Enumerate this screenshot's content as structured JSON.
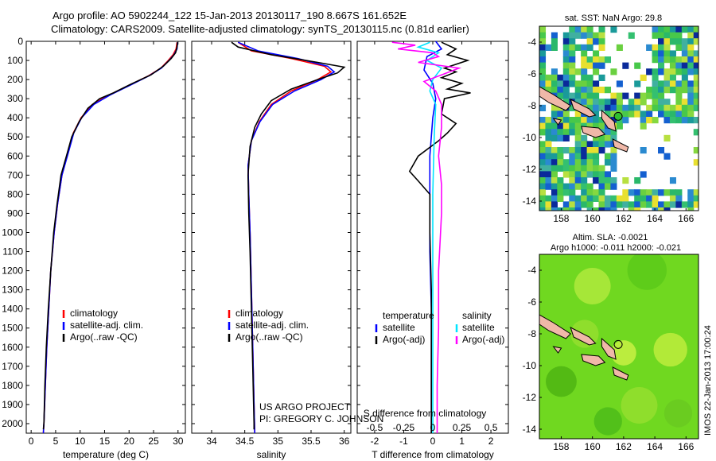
{
  "header": {
    "line1": "Argo profile: AO 5902244_122 15-Jan-2013 20130117_190 8.667S 161.652E",
    "line2": "Climatology: CARS2009. Satellite-adjusted climatology: synTS_20130115.nc (0.81d earlier)"
  },
  "colors": {
    "climatology": "#ff0000",
    "satellite": "#0000ff",
    "argo": "#000000",
    "cyan": "#00e5ff",
    "magenta": "#ff00ff"
  },
  "chart_data": [
    {
      "type": "line",
      "name": "temperature",
      "xlabel": "temperature (deg C)",
      "xlim": [
        -1,
        31.5
      ],
      "ylim": [
        2050,
        0
      ],
      "xticks": [
        0,
        5,
        10,
        15,
        20,
        25,
        30
      ],
      "yticks": [
        0,
        100,
        200,
        300,
        400,
        500,
        600,
        700,
        800,
        900,
        1000,
        1100,
        1200,
        1300,
        1400,
        1500,
        1600,
        1700,
        1800,
        1900,
        2000
      ],
      "legend": [
        "climatology",
        "satellite-adj. clim.",
        "Argo(..raw -QC)"
      ],
      "series": [
        {
          "name": "climatology",
          "color": "#ff0000",
          "points": [
            [
              29.8,
              5
            ],
            [
              29.6,
              40
            ],
            [
              29,
              70
            ],
            [
              28,
              100
            ],
            [
              26.5,
              140
            ],
            [
              24,
              180
            ],
            [
              20,
              230
            ],
            [
              16,
              280
            ],
            [
              12.5,
              330
            ],
            [
              10.2,
              400
            ],
            [
              8.6,
              480
            ],
            [
              7.3,
              600
            ],
            [
              6.3,
              700
            ],
            [
              5.4,
              850
            ],
            [
              4.7,
              1000
            ],
            [
              4,
              1200
            ],
            [
              3.6,
              1400
            ],
            [
              3.2,
              1600
            ],
            [
              2.9,
              1800
            ],
            [
              2.6,
              2000
            ],
            [
              2.5,
              2050
            ]
          ]
        },
        {
          "name": "satellite-adj. clim.",
          "color": "#0000ff",
          "points": [
            [
              29.9,
              5
            ],
            [
              29.8,
              40
            ],
            [
              29.2,
              70
            ],
            [
              28.2,
              100
            ],
            [
              26.6,
              140
            ],
            [
              24.1,
              180
            ],
            [
              20.2,
              230
            ],
            [
              16.2,
              280
            ],
            [
              12.8,
              330
            ],
            [
              10.3,
              400
            ],
            [
              8.7,
              480
            ],
            [
              7.4,
              600
            ],
            [
              6.3,
              700
            ],
            [
              5.4,
              850
            ],
            [
              4.7,
              1000
            ],
            [
              4,
              1200
            ],
            [
              3.6,
              1400
            ],
            [
              3.2,
              1600
            ],
            [
              2.9,
              1800
            ],
            [
              2.6,
              2000
            ],
            [
              2.5,
              2050
            ]
          ]
        },
        {
          "name": "Argo(..raw -QC)",
          "color": "#000000",
          "points": [
            [
              29.9,
              5
            ],
            [
              29.8,
              30
            ],
            [
              29.5,
              60
            ],
            [
              28.6,
              90
            ],
            [
              27,
              130
            ],
            [
              24.5,
              175
            ],
            [
              20.3,
              225
            ],
            [
              16.8,
              270
            ],
            [
              14,
              300
            ],
            [
              11.6,
              350
            ],
            [
              9.8,
              420
            ],
            [
              8.3,
              500
            ],
            [
              7.2,
              600
            ],
            [
              6.1,
              700
            ],
            [
              5.3,
              850
            ],
            [
              4.6,
              1000
            ],
            [
              4,
              1200
            ],
            [
              3.5,
              1400
            ],
            [
              3.1,
              1600
            ],
            [
              2.8,
              1800
            ],
            [
              2.6,
              2000
            ],
            [
              2.5,
              2030
            ]
          ]
        }
      ]
    },
    {
      "type": "line",
      "name": "salinity",
      "xlabel": "salinity",
      "xlim": [
        33.7,
        36.1
      ],
      "ylim": [
        2050,
        0
      ],
      "xticks": [
        34,
        34.5,
        35,
        35.5,
        36
      ],
      "legend": [
        "climatology",
        "satellite-adj. clim.",
        "Argo(..raw -QC)"
      ],
      "series": [
        {
          "name": "climatology",
          "color": "#ff0000",
          "points": [
            [
              34.4,
              5
            ],
            [
              34.6,
              50
            ],
            [
              35.2,
              90
            ],
            [
              35.7,
              130
            ],
            [
              35.8,
              160
            ],
            [
              35.6,
              200
            ],
            [
              35.2,
              260
            ],
            [
              34.9,
              330
            ],
            [
              34.72,
              420
            ],
            [
              34.6,
              520
            ],
            [
              34.55,
              650
            ],
            [
              34.56,
              800
            ],
            [
              34.58,
              1000
            ],
            [
              34.6,
              1300
            ],
            [
              34.62,
              1600
            ],
            [
              34.64,
              1900
            ],
            [
              34.65,
              2050
            ]
          ]
        },
        {
          "name": "satellite-adj. clim.",
          "color": "#0000ff",
          "points": [
            [
              34.4,
              5
            ],
            [
              34.7,
              50
            ],
            [
              35.3,
              90
            ],
            [
              35.75,
              130
            ],
            [
              35.85,
              160
            ],
            [
              35.65,
              200
            ],
            [
              35.25,
              260
            ],
            [
              34.92,
              330
            ],
            [
              34.73,
              420
            ],
            [
              34.6,
              520
            ],
            [
              34.55,
              650
            ],
            [
              34.56,
              800
            ],
            [
              34.58,
              1000
            ],
            [
              34.6,
              1300
            ],
            [
              34.62,
              1600
            ],
            [
              34.64,
              1900
            ],
            [
              34.65,
              2050
            ]
          ]
        },
        {
          "name": "Argo(..raw -QC)",
          "color": "#000000",
          "points": [
            [
              34.3,
              5
            ],
            [
              34.4,
              30
            ],
            [
              34.9,
              70
            ],
            [
              35.6,
              110
            ],
            [
              36.0,
              135
            ],
            [
              35.9,
              165
            ],
            [
              35.6,
              200
            ],
            [
              35.2,
              250
            ],
            [
              34.9,
              310
            ],
            [
              34.75,
              380
            ],
            [
              34.65,
              450
            ],
            [
              34.58,
              550
            ],
            [
              34.55,
              700
            ],
            [
              34.56,
              900
            ],
            [
              34.58,
              1100
            ],
            [
              34.6,
              1400
            ],
            [
              34.62,
              1700
            ],
            [
              34.64,
              2000
            ],
            [
              34.64,
              2030
            ]
          ]
        }
      ]
    },
    {
      "type": "line",
      "name": "difference",
      "xlabel": "T difference from climatology",
      "xlabel2": "S difference from climatology",
      "xlim": [
        -2.6,
        2.6
      ],
      "ylim": [
        2050,
        0
      ],
      "xticks": [
        -2,
        -1,
        0,
        1,
        2
      ],
      "xticks2": [
        "-0.5",
        "-0.25",
        "0",
        "0.25",
        "0.5"
      ],
      "legend_titles": [
        "temperature",
        "salinity"
      ],
      "legend_left": [
        "satellite",
        "Argo(-adj)"
      ],
      "legend_right": [
        "satellite",
        "Argo(-adj)"
      ],
      "series": [
        {
          "name": "T satellite",
          "color": "#0000ff",
          "points": [
            [
              0.1,
              0
            ],
            [
              0.3,
              40
            ],
            [
              -0.2,
              80
            ],
            [
              -0.3,
              150
            ],
            [
              0,
              220
            ],
            [
              0.1,
              300
            ],
            [
              0,
              400
            ],
            [
              -0.1,
              600
            ],
            [
              -0.1,
              800
            ],
            [
              -0.1,
              1100
            ],
            [
              -0.05,
              1400
            ],
            [
              -0.05,
              1700
            ],
            [
              -0.05,
              2000
            ],
            [
              -0.05,
              2050
            ]
          ]
        },
        {
          "name": "T Argo(-adj)",
          "color": "#000000",
          "points": [
            [
              0.3,
              5
            ],
            [
              0.8,
              40
            ],
            [
              0.5,
              70
            ],
            [
              1.2,
              100
            ],
            [
              0.4,
              140
            ],
            [
              0.8,
              160
            ],
            [
              0.3,
              190
            ],
            [
              1.0,
              220
            ],
            [
              0.5,
              250
            ],
            [
              1.3,
              270
            ],
            [
              0.4,
              300
            ],
            [
              0.3,
              380
            ],
            [
              0.8,
              430
            ],
            [
              0.5,
              480
            ],
            [
              0.2,
              520
            ],
            [
              -0.5,
              600
            ],
            [
              -0.8,
              680
            ],
            [
              -0.5,
              730
            ],
            [
              -0.1,
              800
            ],
            [
              -0.1,
              1000
            ],
            [
              -0.05,
              1300
            ],
            [
              -0.05,
              1600
            ],
            [
              -0.05,
              1900
            ],
            [
              -0.05,
              2050
            ]
          ]
        },
        {
          "name": "S satellite",
          "color": "#00e5ff",
          "points": [
            [
              -0.1,
              5
            ],
            [
              -0.5,
              30
            ],
            [
              0.2,
              60
            ],
            [
              -0.2,
              100
            ],
            [
              0.3,
              140
            ],
            [
              0,
              200
            ],
            [
              -0.1,
              260
            ],
            [
              0.1,
              330
            ],
            [
              0.05,
              500
            ],
            [
              0,
              800
            ],
            [
              0,
              1200
            ],
            [
              0,
              1600
            ],
            [
              0,
              2050
            ]
          ]
        },
        {
          "name": "S Argo(-adj)",
          "color": "#ff00ff",
          "points": [
            [
              -1.4,
              5
            ],
            [
              -0.6,
              20
            ],
            [
              -1.2,
              40
            ],
            [
              0,
              60
            ],
            [
              0.2,
              80
            ],
            [
              -0.5,
              110
            ],
            [
              0.9,
              140
            ],
            [
              0.4,
              170
            ],
            [
              -0.3,
              210
            ],
            [
              0.1,
              260
            ],
            [
              0.3,
              330
            ],
            [
              0.3,
              450
            ],
            [
              0.2,
              600
            ],
            [
              0.3,
              750
            ],
            [
              0.3,
              900
            ],
            [
              0.2,
              1200
            ],
            [
              0.2,
              1500
            ],
            [
              0.15,
              1800
            ],
            [
              0.15,
              2050
            ]
          ]
        }
      ]
    }
  ],
  "annotations": {
    "project": "US ARGO PROJECT",
    "pi": "PI: GREGORY C. JOHNSON"
  },
  "maps": {
    "sst_title": "sat. SST: NaN Argo: 29.8",
    "sla_title1": "Altim. SLA: -0.0021",
    "sla_title2": "Argo h1000: -0.011 h2000: -0.021",
    "xticks": [
      "158",
      "160",
      "162",
      "164",
      "166"
    ],
    "yticks": [
      "-4",
      "-6",
      "-8",
      "-10",
      "-12",
      "-14"
    ]
  },
  "watermark": "IMOS 22-Jan-2013 17:00:24"
}
